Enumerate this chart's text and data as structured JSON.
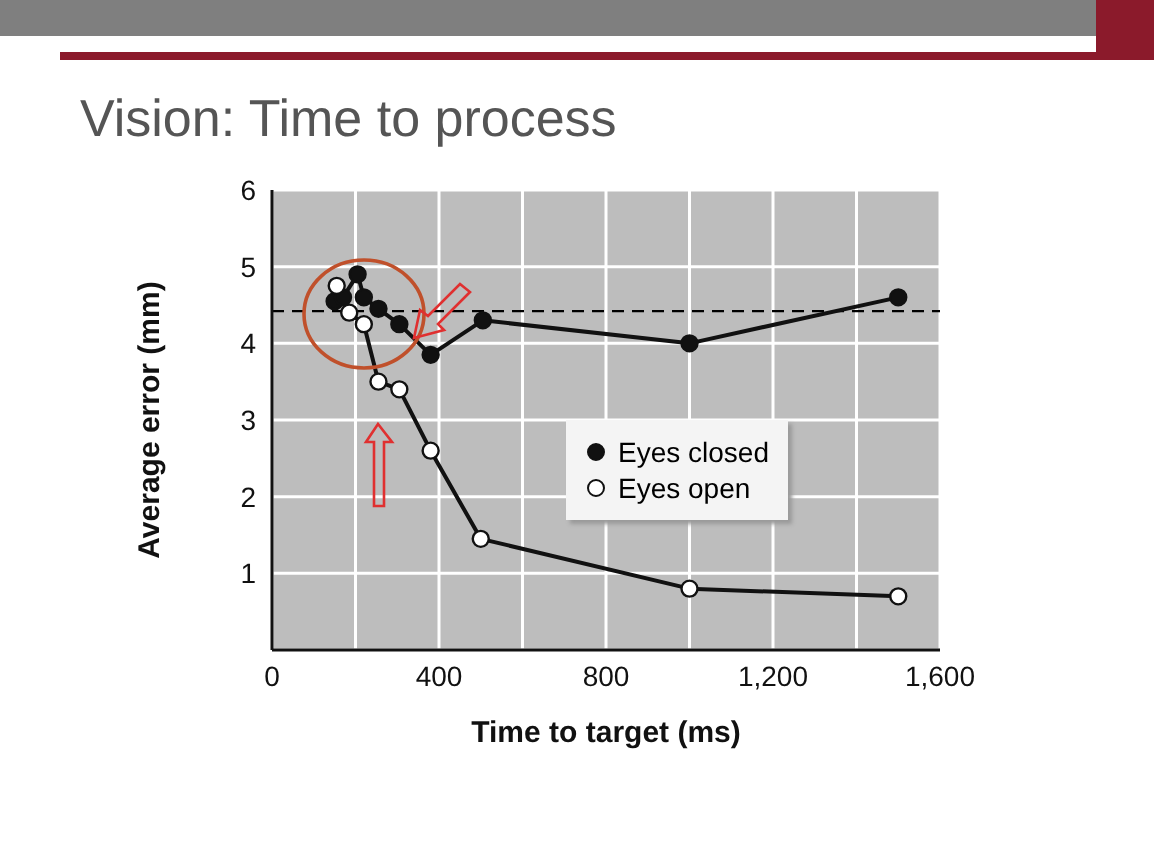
{
  "chart_data": {
    "type": "line",
    "title": "Vision: Time to process",
    "xlabel": "Time to target (ms)",
    "ylabel": "Average error (mm)",
    "xlim": [
      0,
      1600
    ],
    "xticks": [
      0,
      {
        "value": 200,
        "label": null
      },
      400,
      {
        "value": 600,
        "label": null
      },
      800,
      {
        "value": 1000,
        "label": null
      },
      {
        "value": 1200,
        "label": "1,200"
      },
      {
        "value": 1400,
        "label": null
      },
      {
        "value": 1600,
        "label": "1,600"
      }
    ],
    "ylim": [
      0,
      6
    ],
    "yticks": [
      {
        "value": 0,
        "label": null
      },
      1,
      2,
      3,
      4,
      5,
      6
    ],
    "series": [
      {
        "name": "Eyes closed",
        "color": "#111111",
        "x": [
          150,
          170,
          205,
          220,
          255,
          305,
          380,
          505,
          1000,
          1500
        ],
        "values": [
          4.55,
          4.6,
          4.9,
          4.6,
          4.45,
          4.25,
          3.85,
          4.3,
          4.0,
          4.6
        ]
      },
      {
        "name": "Eyes open",
        "color": "#111111",
        "x": [
          155,
          185,
          220,
          255,
          305,
          380,
          500,
          1000,
          1500
        ],
        "values": [
          4.75,
          4.4,
          4.25,
          3.5,
          3.4,
          2.6,
          1.45,
          0.8,
          0.7
        ]
      }
    ],
    "ref_lines": [
      {
        "axis": "y",
        "value": 4.42,
        "color": "#000000",
        "line_style": "dashed"
      }
    ],
    "grid": true,
    "legend": "right",
    "marker": "circle",
    "line_style": "solid"
  }
}
